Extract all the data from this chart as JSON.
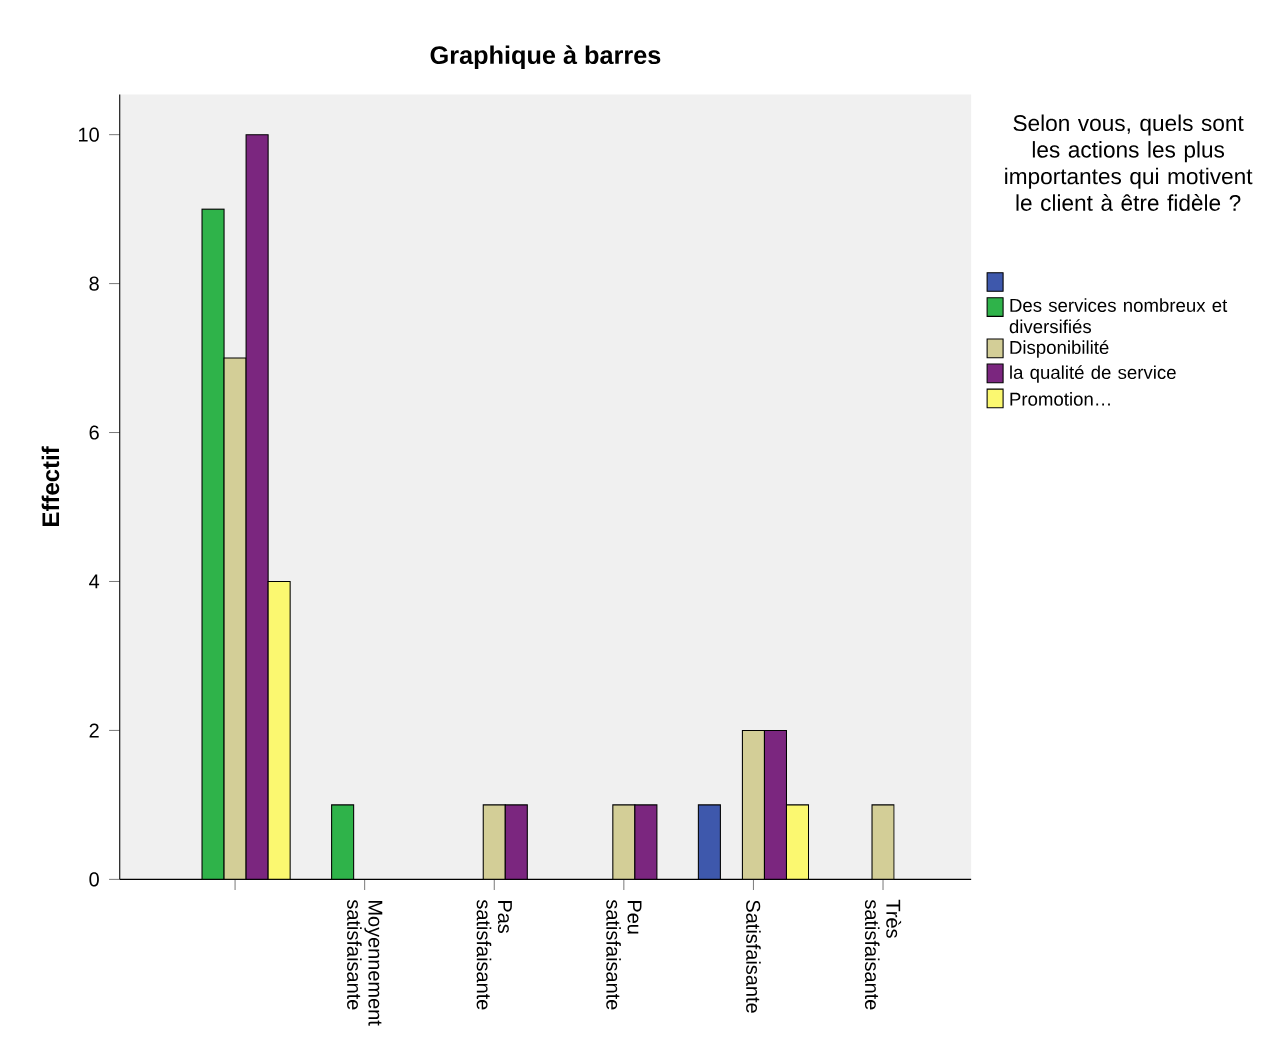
{
  "chart_data": {
    "type": "bar",
    "title": "Graphique à barres",
    "ylabel": "Effectif",
    "legend_title": "Selon vous, quels sont les actions les plus importantes qui motivent le client à être fidèle ?",
    "categories": [
      null,
      "Moyennement satisfaisante",
      "Pas satisfaisante",
      "Peu satisfaisante",
      "Satisfaisante",
      "Très satisfaisante"
    ],
    "series": [
      {
        "color": "#3e58ac",
        "values": [
          null,
          null,
          null,
          null,
          1,
          null
        ]
      },
      {
        "name": "Des services nombreux et diversifiés",
        "color": "#2fb34a",
        "values": [
          9,
          1,
          null,
          null,
          null,
          null
        ]
      },
      {
        "name": "Disponibilité",
        "color": "#d3ce97",
        "values": [
          7,
          null,
          1,
          1,
          2,
          1
        ]
      },
      {
        "name": "la qualité de service",
        "color": "#7b267f",
        "values": [
          10,
          null,
          1,
          1,
          2,
          null
        ]
      },
      {
        "name": "Promotion…",
        "color": "#fbf870",
        "values": [
          4,
          null,
          null,
          null,
          1,
          null
        ]
      }
    ],
    "ylim": [
      0,
      10.54
    ],
    "yticks": [
      0,
      2,
      4,
      6,
      8,
      10
    ],
    "grid": false,
    "legend": "right"
  }
}
